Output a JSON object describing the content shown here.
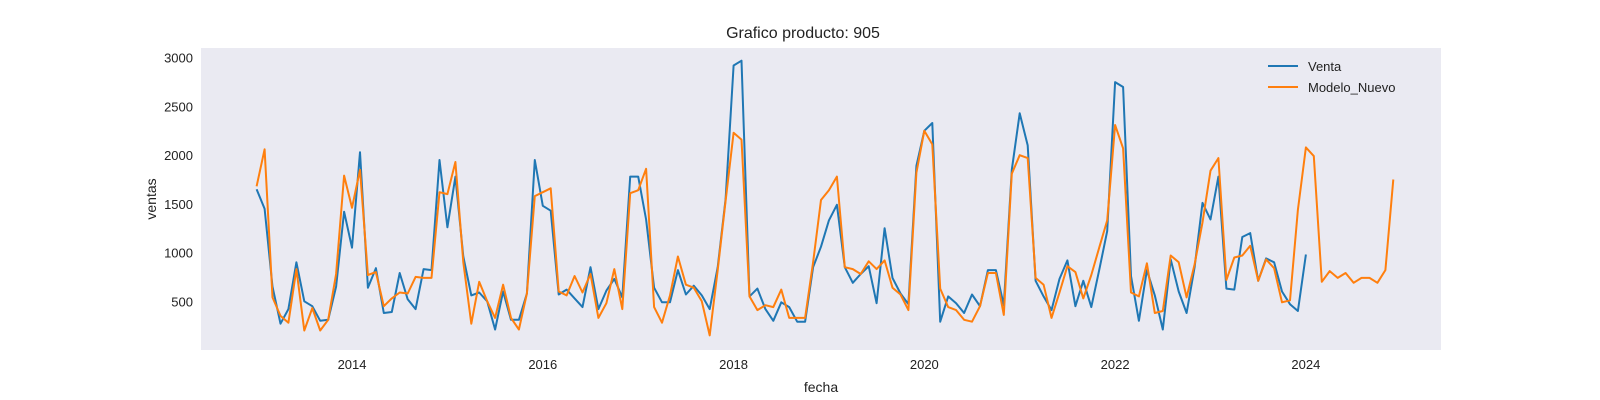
{
  "chart_data": {
    "type": "line",
    "title": "Grafico producto: 905",
    "xlabel": "fecha",
    "ylabel": "ventas",
    "x_start": "2013-01",
    "x_frequency": "monthly",
    "xlim": [
      "2012-06",
      "2025-06"
    ],
    "ylim": [
      0,
      3100
    ],
    "x_ticks": [
      "2014",
      "2016",
      "2018",
      "2020",
      "2022",
      "2024"
    ],
    "y_ticks": [
      500,
      1000,
      1500,
      2000,
      2500,
      3000
    ],
    "grid": false,
    "legend_position": "top-right",
    "series": [
      {
        "name": "Venta",
        "color": "#1f77b4",
        "values": [
          1650,
          1450,
          650,
          270,
          420,
          900,
          500,
          450,
          300,
          310,
          650,
          1420,
          1050,
          2030,
          640,
          840,
          380,
          390,
          790,
          520,
          420,
          830,
          820,
          1950,
          1260,
          1780,
          960,
          560,
          590,
          500,
          210,
          600,
          310,
          310,
          580,
          1950,
          1480,
          1430,
          570,
          620,
          530,
          440,
          850,
          420,
          610,
          730,
          540,
          1780,
          1780,
          1340,
          640,
          490,
          490,
          820,
          570,
          660,
          560,
          420,
          850,
          1550,
          2920,
          2970,
          550,
          630,
          420,
          300,
          490,
          440,
          290,
          290,
          850,
          1060,
          1330,
          1490,
          850,
          690,
          780,
          860,
          480,
          1250,
          740,
          580,
          470,
          1890,
          2250,
          2330,
          290,
          550,
          480,
          380,
          570,
          450,
          820,
          820,
          460,
          1850,
          2430,
          2100,
          710,
          550,
          410,
          730,
          920,
          450,
          710,
          440,
          820,
          1220,
          2750,
          2700,
          760,
          300,
          820,
          560,
          210,
          930,
          600,
          380,
          850,
          1510,
          1340,
          1780,
          630,
          620,
          1160,
          1200,
          710,
          940,
          900,
          600,
          470,
          400,
          980
        ]
      },
      {
        "name": "Modelo_Nuevo",
        "color": "#ff7f0e",
        "values": [
          1680,
          2060,
          540,
          350,
          280,
          830,
          200,
          430,
          200,
          310,
          780,
          1790,
          1460,
          1850,
          770,
          800,
          450,
          530,
          590,
          580,
          750,
          740,
          740,
          1620,
          1600,
          1930,
          900,
          270,
          700,
          500,
          330,
          670,
          330,
          210,
          580,
          1580,
          1620,
          1660,
          600,
          560,
          760,
          590,
          780,
          330,
          480,
          830,
          420,
          1610,
          1640,
          1860,
          440,
          280,
          560,
          960,
          670,
          640,
          500,
          150,
          820,
          1530,
          2230,
          2160,
          550,
          410,
          460,
          440,
          620,
          330,
          330,
          330,
          900,
          1540,
          1640,
          1780,
          850,
          830,
          780,
          910,
          830,
          920,
          640,
          570,
          410,
          1820,
          2250,
          2110,
          630,
          440,
          410,
          310,
          290,
          450,
          790,
          790,
          360,
          1810,
          2000,
          1970,
          740,
          670,
          330,
          590,
          860,
          800,
          530,
          770,
          1050,
          1330,
          2310,
          2070,
          590,
          550,
          890,
          380,
          400,
          970,
          900,
          540,
          880,
          1310,
          1840,
          1970,
          720,
          950,
          970,
          1070,
          710,
          930,
          840,
          490,
          510,
          1440,
          2080,
          1990,
          700,
          810,
          740,
          790,
          690,
          740,
          740,
          690,
          820,
          1750
        ]
      }
    ]
  }
}
